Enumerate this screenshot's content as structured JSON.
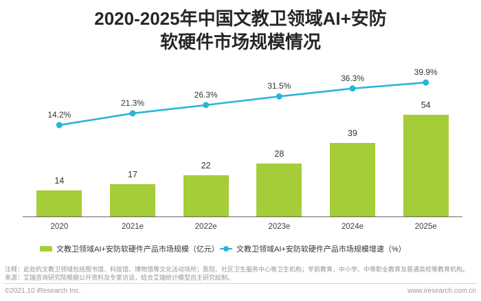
{
  "title": {
    "line1": "2020-2025年中国文教卫领域AI+安防",
    "line2": "软硬件市场规模情况"
  },
  "chart_data": {
    "type": "bar+line",
    "title": "2020-2025年中国文教卫领域AI+安防软硬件市场规模情况",
    "categories": [
      "2020",
      "2021e",
      "2022e",
      "2023e",
      "2024e",
      "2025e"
    ],
    "series": [
      {
        "name": "文教卫领域AI+安防软硬件产品市场规模（亿元）",
        "type": "bar",
        "values": [
          14,
          17,
          22,
          28,
          39,
          54
        ],
        "color": "#a5cd39"
      },
      {
        "name": "文教卫领域AI+安防软硬件产品市场规模增速（%）",
        "type": "line",
        "values": [
          14.2,
          21.3,
          26.3,
          31.5,
          36.3,
          39.9
        ],
        "labels": [
          "14.2%",
          "21.3%",
          "26.3%",
          "31.5%",
          "36.3%",
          "39.9%"
        ],
        "color": "#29b4d8"
      }
    ],
    "xlabel": "",
    "ylabel": "",
    "grid": false,
    "legend_position": "bottom",
    "y_axis_visible": false
  },
  "legend": {
    "bar_label": "文教卫领域AI+安防软硬件产品市场规模（亿元）",
    "line_label": "文教卫领域AI+安防软硬件产品市场规模增速（%）"
  },
  "notes": {
    "note1": "注释：此处的文教卫领域包括图书馆、科技馆、博物馆等文化活动场所；医院、社区卫生服务中心等卫生机构；学前教育、中小学、中等职业教育及普通高校等教育机构。",
    "note2": "来源：艾瑞咨询研究院根据公开资料及专家访谈，结合艾瑞统计模型自主研究绘制。"
  },
  "footer": {
    "copyright": "©2021.10 iResearch Inc.",
    "website": "www.iresearch.com.cn"
  },
  "colors": {
    "bar": "#a5cd39",
    "line": "#29b4d8",
    "axis": "#666666",
    "title_text": "#262626",
    "note_text": "#949494"
  }
}
